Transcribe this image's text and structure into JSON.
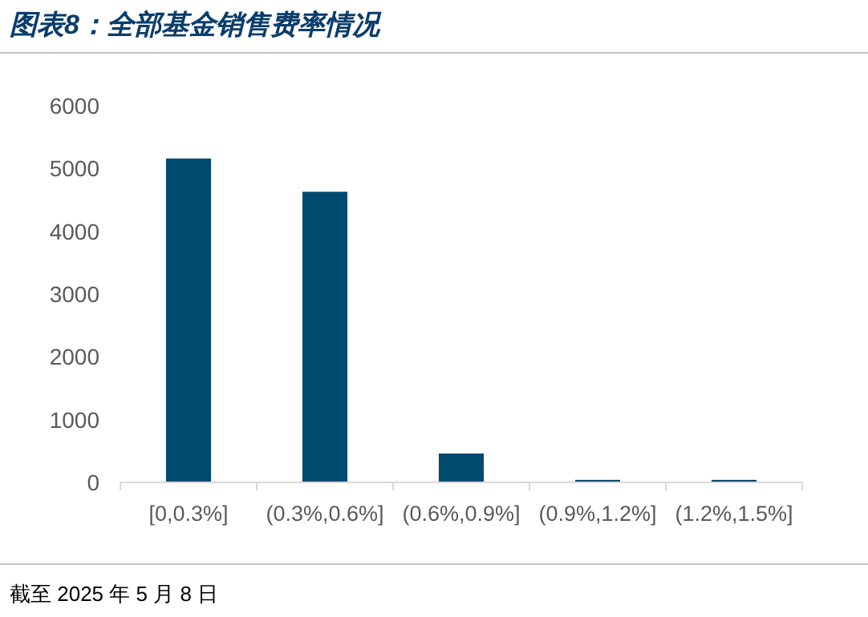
{
  "chart_data": {
    "type": "bar",
    "title": "图表8：全部基金销售费率情况",
    "categories": [
      "[0,0.3%]",
      "(0.3%,0.6%]",
      "(0.6%,0.9%]",
      "(0.9%,1.2%]",
      "(1.2%,1.5%]"
    ],
    "values": [
      5160,
      4630,
      460,
      40,
      40
    ],
    "color": "#004a70",
    "ylim": [
      0,
      6000
    ],
    "yticks": [
      0,
      1000,
      2000,
      3000,
      4000,
      5000,
      6000
    ],
    "grid": false,
    "annotations": [
      "截至 2025 年 5 月 8 日"
    ]
  }
}
